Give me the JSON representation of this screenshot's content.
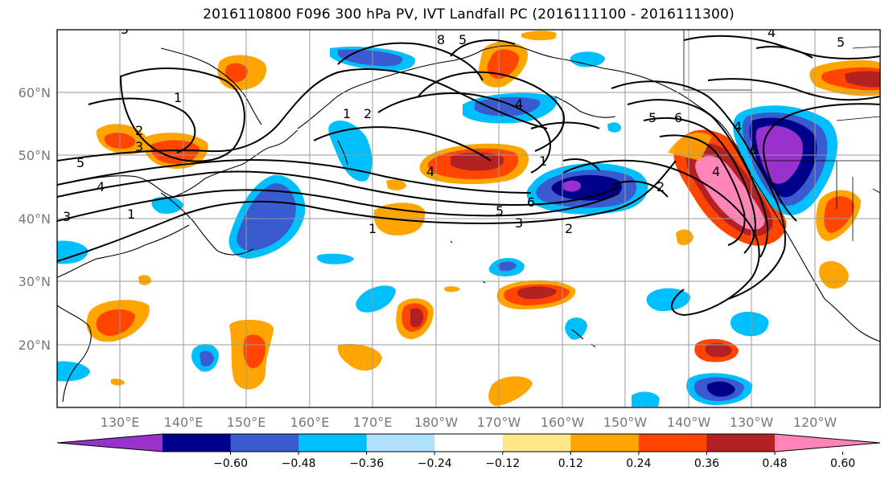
{
  "title": "2016110800 F096 300 hPa PV, IVT Landfall PC (2016111100 - 2016111300)",
  "map": {
    "lat_labels": [
      "60°N",
      "50°N",
      "40°N",
      "30°N",
      "20°N"
    ],
    "lon_labels": [
      "130°E",
      "140°E",
      "150°E",
      "160°E",
      "170°E",
      "180°W",
      "170°W",
      "160°W",
      "150°W",
      "140°W",
      "130°W",
      "120°W"
    ],
    "pv_contour_labels": [
      "1",
      "1",
      "2",
      "2",
      "2",
      "3",
      "3",
      "4",
      "4",
      "4",
      "4",
      "4",
      "5",
      "5",
      "5",
      "5",
      "6",
      "6",
      "6",
      "1",
      "1",
      "1",
      "2",
      "3",
      "4",
      "5",
      "5",
      "8"
    ],
    "colors": {
      "contour": "#000000",
      "coast": "#000000",
      "grid": "#9a9a9a"
    }
  },
  "colorbar": {
    "tick_labels": [
      "−0.60",
      "−0.48",
      "−0.36",
      "−0.24",
      "−0.12",
      "0.12",
      "0.24",
      "0.36",
      "0.48",
      "0.60"
    ],
    "colors": [
      "#9932cc",
      "#00008b",
      "#3a5bd0",
      "#00bfff",
      "#b0e0ff",
      "#ffffff",
      "#ffe88a",
      "#ffa500",
      "#ff4500",
      "#b22222",
      "#ff85b8"
    ]
  }
}
